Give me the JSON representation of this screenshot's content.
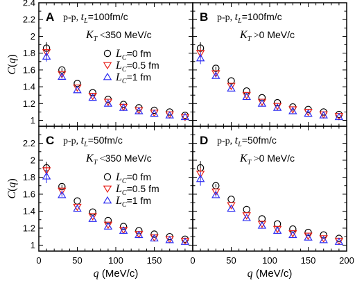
{
  "chart_data": [
    {
      "type": "scatter",
      "panel_letter": "A",
      "system": "p-p",
      "t_label": "100fm/c",
      "kt_rel": "<",
      "kt_value": "350",
      "kt_unit": "MeV/c",
      "show_legend": true,
      "x": [
        10,
        30,
        50,
        70,
        90,
        110,
        130,
        150,
        170,
        190
      ],
      "xlim": [
        0,
        200
      ],
      "ylim": [
        0.93,
        2.4
      ],
      "series": [
        {
          "name": "L_C=0 fm",
          "marker": "circle",
          "color": "#000000",
          "values": [
            1.86,
            1.6,
            1.44,
            1.33,
            1.25,
            1.19,
            1.15,
            1.12,
            1.1,
            1.06
          ],
          "err": [
            0.07,
            0.02,
            0.01,
            0.01,
            0.01,
            0.01,
            0.01,
            0.01,
            0.01,
            0.01
          ]
        },
        {
          "name": "L_C=0.5 fm",
          "marker": "triangle-down",
          "color": "#e8201a",
          "values": [
            1.81,
            1.55,
            1.39,
            1.29,
            1.22,
            1.16,
            1.12,
            1.09,
            1.07,
            1.04
          ],
          "err": [
            0.06,
            0.02,
            0.01,
            0.01,
            0.01,
            0.01,
            0.01,
            0.01,
            0.01,
            0.01
          ]
        },
        {
          "name": "L_C=1 fm",
          "marker": "triangle-up",
          "color": "#2c2cf0",
          "values": [
            1.76,
            1.52,
            1.36,
            1.27,
            1.2,
            1.15,
            1.11,
            1.08,
            1.06,
            1.04
          ],
          "err": [
            0.06,
            0.02,
            0.01,
            0.01,
            0.01,
            0.01,
            0.01,
            0.01,
            0.01,
            0.01
          ]
        }
      ]
    },
    {
      "type": "scatter",
      "panel_letter": "B",
      "system": "p-p",
      "t_label": "100fm/c",
      "kt_rel": ">",
      "kt_value": "0",
      "kt_unit": "MeV/c",
      "show_legend": false,
      "x": [
        10,
        30,
        50,
        70,
        90,
        110,
        130,
        150,
        170,
        190
      ],
      "xlim": [
        0,
        200
      ],
      "ylim": [
        0.93,
        2.4
      ],
      "series": [
        {
          "name": "L_C=0 fm",
          "marker": "circle",
          "color": "#000000",
          "values": [
            1.86,
            1.62,
            1.47,
            1.35,
            1.27,
            1.21,
            1.16,
            1.13,
            1.1,
            1.07
          ],
          "err": [
            0.07,
            0.02,
            0.01,
            0.01,
            0.01,
            0.01,
            0.01,
            0.01,
            0.01,
            0.01
          ]
        },
        {
          "name": "L_C=0.5 fm",
          "marker": "triangle-down",
          "color": "#e8201a",
          "values": [
            1.8,
            1.56,
            1.41,
            1.3,
            1.22,
            1.17,
            1.13,
            1.1,
            1.07,
            1.05
          ],
          "err": [
            0.06,
            0.02,
            0.01,
            0.01,
            0.01,
            0.01,
            0.01,
            0.01,
            0.01,
            0.01
          ]
        },
        {
          "name": "L_C=1 fm",
          "marker": "triangle-up",
          "color": "#2c2cf0",
          "values": [
            1.74,
            1.53,
            1.38,
            1.28,
            1.2,
            1.15,
            1.11,
            1.08,
            1.06,
            1.04
          ],
          "err": [
            0.07,
            0.02,
            0.01,
            0.01,
            0.01,
            0.01,
            0.01,
            0.01,
            0.01,
            0.01
          ]
        }
      ]
    },
    {
      "type": "scatter",
      "panel_letter": "C",
      "system": "p-p",
      "t_label": "50fm/c",
      "kt_rel": "<",
      "kt_value": "350",
      "kt_unit": "MeV/c",
      "show_legend": true,
      "x": [
        10,
        30,
        50,
        70,
        90,
        110,
        130,
        150,
        170,
        190
      ],
      "xlim": [
        0,
        200
      ],
      "ylim": [
        0.93,
        2.4
      ],
      "series": [
        {
          "name": "L_C=0 fm",
          "marker": "circle",
          "color": "#000000",
          "values": [
            1.91,
            1.69,
            1.52,
            1.39,
            1.29,
            1.22,
            1.17,
            1.13,
            1.1,
            1.07
          ],
          "err": [
            0.07,
            0.02,
            0.01,
            0.01,
            0.01,
            0.01,
            0.01,
            0.01,
            0.01,
            0.01
          ]
        },
        {
          "name": "L_C=0.5 fm",
          "marker": "triangle-down",
          "color": "#e8201a",
          "values": [
            1.88,
            1.64,
            1.45,
            1.34,
            1.24,
            1.18,
            1.13,
            1.09,
            1.07,
            1.05
          ],
          "err": [
            0.06,
            0.02,
            0.01,
            0.01,
            0.01,
            0.01,
            0.01,
            0.01,
            0.01,
            0.01
          ]
        },
        {
          "name": "L_C=1 fm",
          "marker": "triangle-up",
          "color": "#2c2cf0",
          "values": [
            1.81,
            1.59,
            1.43,
            1.31,
            1.22,
            1.17,
            1.12,
            1.08,
            1.06,
            1.04
          ],
          "err": [
            0.08,
            0.02,
            0.01,
            0.01,
            0.01,
            0.01,
            0.01,
            0.01,
            0.01,
            0.01
          ]
        }
      ]
    },
    {
      "type": "scatter",
      "panel_letter": "D",
      "system": "p-p",
      "t_label": "50fm/c",
      "kt_rel": ">",
      "kt_value": "0",
      "kt_unit": "MeV/c",
      "show_legend": false,
      "x": [
        10,
        30,
        50,
        70,
        90,
        110,
        130,
        150,
        170,
        190
      ],
      "xlim": [
        0,
        200
      ],
      "ylim": [
        0.93,
        2.4
      ],
      "series": [
        {
          "name": "L_C=0 fm",
          "marker": "circle",
          "color": "#000000",
          "values": [
            1.91,
            1.7,
            1.54,
            1.42,
            1.31,
            1.25,
            1.19,
            1.15,
            1.12,
            1.08
          ],
          "err": [
            0.08,
            0.02,
            0.01,
            0.01,
            0.01,
            0.01,
            0.01,
            0.01,
            0.01,
            0.01
          ]
        },
        {
          "name": "L_C=0.5 fm",
          "marker": "triangle-down",
          "color": "#e8201a",
          "values": [
            1.84,
            1.63,
            1.47,
            1.35,
            1.25,
            1.19,
            1.14,
            1.11,
            1.08,
            1.05
          ],
          "err": [
            0.07,
            0.02,
            0.01,
            0.01,
            0.01,
            0.01,
            0.01,
            0.01,
            0.01,
            0.01
          ]
        },
        {
          "name": "L_C=1 fm",
          "marker": "triangle-up",
          "color": "#2c2cf0",
          "values": [
            1.78,
            1.59,
            1.43,
            1.32,
            1.23,
            1.17,
            1.12,
            1.09,
            1.06,
            1.04
          ],
          "err": [
            0.08,
            0.02,
            0.01,
            0.01,
            0.01,
            0.01,
            0.01,
            0.01,
            0.01,
            0.01
          ]
        }
      ]
    }
  ],
  "axes": {
    "ylabel_var": "C",
    "ylabel_arg": "q",
    "xlabel_var": "q",
    "xlabel_unit": "(MeV/c)",
    "top_yticks": [
      1,
      1.2,
      1.4,
      1.6,
      1.8,
      2,
      2.2,
      2.4
    ],
    "bottom_yticks": [
      1,
      1.2,
      1.4,
      1.6,
      1.8,
      2,
      2.2
    ],
    "left_xticks": [
      0,
      50,
      100,
      150
    ],
    "right_xticks": [
      0,
      50,
      100,
      150,
      200
    ],
    "legend_labels": [
      "0 fm",
      "0.5 fm",
      "1 fm"
    ]
  }
}
